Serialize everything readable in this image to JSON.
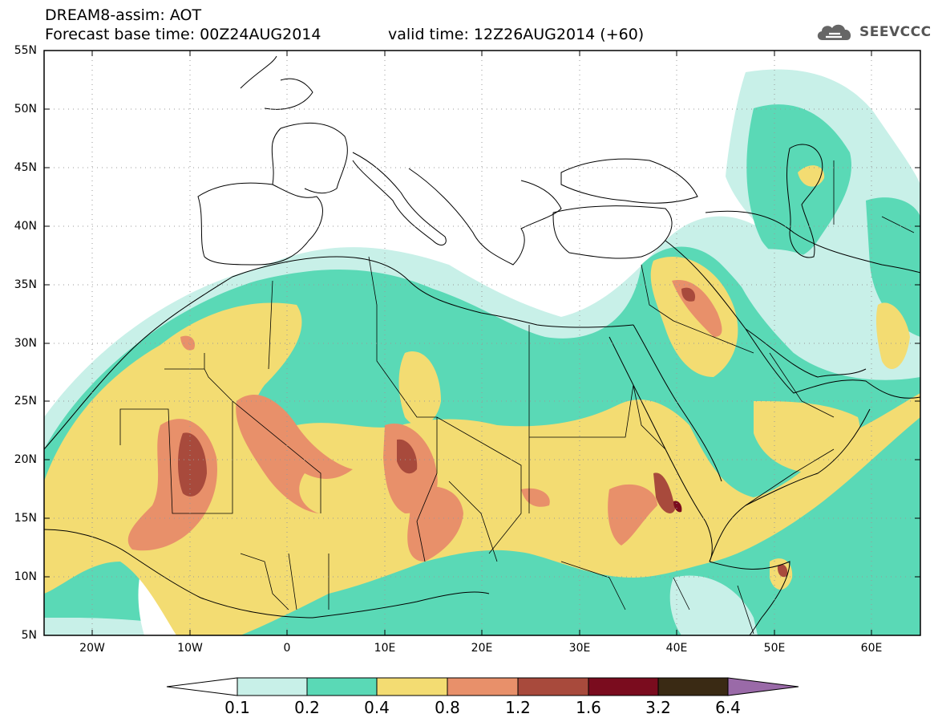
{
  "header": {
    "line1": "DREAM8-assim: AOT",
    "line2": "Forecast base time: 00Z24AUG2014",
    "valid": "valid time: 12Z26AUG2014 (+60)"
  },
  "logo": {
    "icon": "cloud-logo-icon",
    "text": "SEEVCCC"
  },
  "map": {
    "lat_labels": [
      "55N",
      "50N",
      "45N",
      "40N",
      "35N",
      "30N",
      "25N",
      "20N",
      "15N",
      "10N",
      "5N"
    ],
    "lon_labels": [
      "20W",
      "10W",
      "0",
      "10E",
      "20E",
      "30E",
      "40E",
      "50E",
      "60E"
    ],
    "lat_range": [
      5,
      55
    ],
    "lon_range": [
      -25,
      65
    ]
  },
  "colorbar": {
    "labels": [
      "0.1",
      "0.2",
      "0.4",
      "0.8",
      "1.2",
      "1.6",
      "3.2",
      "6.4"
    ],
    "colors": [
      "#ffffff",
      "#c8f0e8",
      "#5ad9b6",
      "#f3dc72",
      "#e8906a",
      "#a84a3c",
      "#7a0c1e",
      "#3a2a14",
      "#9a6aa8"
    ]
  }
}
